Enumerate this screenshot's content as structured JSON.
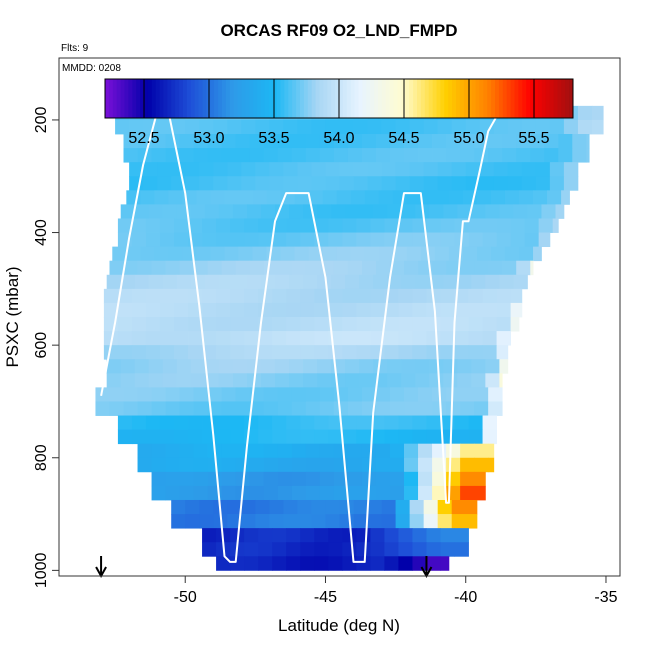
{
  "chart_data": {
    "type": "heatmap",
    "title": "ORCAS RF09 O2_LND_FMPD",
    "note_flts": "Flts: 9",
    "note_mmdd": "MMDD: 0208",
    "xlabel": "Latitude (deg N)",
    "ylabel": "PSXC (mbar)",
    "xlim": [
      -54.5,
      -34.5
    ],
    "ylim": [
      1010,
      90
    ],
    "y_reversed": true,
    "xticks": [
      -50,
      -45,
      -40,
      -35
    ],
    "yticks": [
      200,
      400,
      600,
      800,
      1000
    ],
    "colorbar": {
      "min": 52.2,
      "max": 55.8,
      "ticks": [
        52.5,
        53.0,
        53.5,
        54.0,
        54.5,
        55.0,
        55.5
      ],
      "tick_labels": [
        "52.5",
        "53.0",
        "53.5",
        "54.0",
        "54.5",
        "55.0",
        "55.5"
      ],
      "colors": [
        "#7b10d8",
        "#0000aa",
        "#1e4fd8",
        "#2e9ae8",
        "#1cb8f4",
        "#a8d6f4",
        "#e8f4ff",
        "#fffcd0",
        "#ffd000",
        "#ff8000",
        "#ff0000",
        "#a01010"
      ]
    },
    "grid_y_bin_mbar": 25,
    "cells": [
      {
        "p": 187.5,
        "x0": -52.5,
        "x1": -35.1,
        "v": 53.62,
        "v_r": 53.85,
        "xb": -37.0
      },
      {
        "p": 212.5,
        "x0": -52.5,
        "x1": -35.1,
        "v": 53.62,
        "v_r": 53.9,
        "xb": -37.0
      },
      {
        "p": 237.5,
        "x0": -52.2,
        "x1": -35.6,
        "v": 53.62,
        "v_r": 53.75,
        "xb": -36.5
      },
      {
        "p": 262.5,
        "x0": -52.2,
        "x1": -35.6,
        "v": 53.62,
        "v_r": 53.75,
        "xb": -36.5
      },
      {
        "p": 287.5,
        "x0": -52.0,
        "x1": -36.0,
        "v": 53.62,
        "v_r": 53.78,
        "xb": -37.0
      },
      {
        "p": 312.5,
        "x0": -52.0,
        "x1": -36.0,
        "v": 53.6,
        "v_r": 53.78,
        "xb": -37.0
      },
      {
        "p": 337.5,
        "x0": -52.1,
        "x1": -36.3,
        "v": 53.62,
        "v_r": 53.8,
        "xb": -37.0
      },
      {
        "p": 362.5,
        "x0": -52.3,
        "x1": -36.5,
        "v": 53.62,
        "v_r": 53.82,
        "xb": -37.5
      },
      {
        "p": 387.5,
        "x0": -52.4,
        "x1": -36.7,
        "v": 53.65,
        "v_r": 53.85,
        "xb": -37.5
      },
      {
        "p": 412.5,
        "x0": -52.4,
        "x1": -37.0,
        "v": 53.7,
        "v_r": 53.85,
        "xb": -37.5
      },
      {
        "p": 437.5,
        "x0": -52.6,
        "x1": -37.3,
        "v": 53.75,
        "v_r": 53.9,
        "xb": -37.5
      },
      {
        "p": 462.5,
        "x0": -52.7,
        "x1": -37.6,
        "v": 53.8,
        "v_r": 54.3,
        "xb": -38.0
      },
      {
        "p": 487.5,
        "x0": -52.8,
        "x1": -37.8,
        "v": 53.85,
        "v_r": 54.5,
        "xb": -38.0
      },
      {
        "p": 512.5,
        "x0": -52.9,
        "x1": -38.0,
        "v": 53.88,
        "v_r": 54.7,
        "xb": -38.2
      },
      {
        "p": 537.5,
        "x0": -52.9,
        "x1": -38.0,
        "v": 53.9,
        "v_r": 54.55,
        "xb": -38.3
      },
      {
        "p": 562.5,
        "x0": -52.9,
        "x1": -38.1,
        "v": 53.92,
        "v_r": 54.3,
        "xb": -38.5
      },
      {
        "p": 587.5,
        "x0": -52.9,
        "x1": -38.4,
        "v": 53.95,
        "v_r": 54.3,
        "xb": -38.8
      },
      {
        "p": 612.5,
        "x0": -52.9,
        "x1": -38.5,
        "v": 53.85,
        "v_r": 54.2,
        "xb": -38.9
      },
      {
        "p": 637.5,
        "x0": -52.8,
        "x1": -38.5,
        "v": 53.78,
        "v_r": 54.35,
        "xb": -38.9
      },
      {
        "p": 662.5,
        "x0": -52.8,
        "x1": -38.7,
        "v": 53.75,
        "v_r": 54.4,
        "xb": -39.2
      },
      {
        "p": 687.5,
        "x0": -53.2,
        "x1": -38.7,
        "v": 53.72,
        "v_r": 54.3,
        "xb": -39.2
      },
      {
        "p": 712.5,
        "x0": -53.2,
        "x1": -38.7,
        "v": 53.7,
        "v_r": 54.2,
        "xb": -39.2
      },
      {
        "p": 737.5,
        "x0": -52.4,
        "x1": -38.9,
        "v": 53.55,
        "v_r": 54.3,
        "xb": -39.5
      },
      {
        "p": 762.5,
        "x0": -52.4,
        "x1": -38.9,
        "v": 53.5,
        "v_r": 54.3,
        "xb": -39.5
      },
      {
        "p": 787.5,
        "x0": -51.7,
        "x1": -39.0,
        "v": 53.4,
        "v_r": 54.6,
        "xb": -42.5
      },
      {
        "p": 812.5,
        "x0": -51.7,
        "x1": -39.0,
        "v": 53.35,
        "v_r": 54.9,
        "xb": -42.5
      },
      {
        "p": 837.5,
        "x0": -51.2,
        "x1": -39.3,
        "v": 53.2,
        "v_r": 55.1,
        "xb": -42.3
      },
      {
        "p": 862.5,
        "x0": -51.2,
        "x1": -39.3,
        "v": 53.2,
        "v_r": 55.3,
        "xb": -42.3
      },
      {
        "p": 887.5,
        "x0": -50.5,
        "x1": -39.6,
        "v": 53.05,
        "v_r": 55.1,
        "xb": -42.6
      },
      {
        "p": 912.5,
        "x0": -50.5,
        "x1": -39.6,
        "v": 53.05,
        "v_r": 54.9,
        "xb": -42.6
      },
      {
        "p": 937.5,
        "x0": -49.4,
        "x1": -39.9,
        "v": 52.7,
        "v_r": 53.1,
        "xb": -43.5
      },
      {
        "p": 962.5,
        "x0": -49.4,
        "x1": -39.9,
        "v": 52.7,
        "v_r": 53.0,
        "xb": -43.5
      },
      {
        "p": 987.5,
        "x0": -48.9,
        "x1": -40.6,
        "v": 52.65,
        "v_r": 52.35,
        "xb": -42.8
      }
    ],
    "flight_track": [
      [
        -53.0,
        690
      ],
      [
        -52.5,
        560
      ],
      [
        -52.0,
        410
      ],
      [
        -51.5,
        280
      ],
      [
        -51.0,
        185
      ],
      [
        -50.6,
        185
      ],
      [
        -50.0,
        330
      ],
      [
        -49.5,
        530
      ],
      [
        -49.0,
        760
      ],
      [
        -48.6,
        975
      ],
      [
        -48.4,
        985
      ],
      [
        -48.2,
        985
      ],
      [
        -47.8,
        780
      ],
      [
        -47.3,
        560
      ],
      [
        -46.8,
        380
      ],
      [
        -46.4,
        330
      ],
      [
        -45.6,
        330
      ],
      [
        -45.0,
        480
      ],
      [
        -44.5,
        710
      ],
      [
        -44.0,
        985
      ],
      [
        -43.6,
        985
      ],
      [
        -43.3,
        720
      ],
      [
        -42.7,
        480
      ],
      [
        -42.2,
        330
      ],
      [
        -41.6,
        330
      ],
      [
        -41.1,
        540
      ],
      [
        -40.7,
        880
      ],
      [
        -40.6,
        880
      ],
      [
        -40.4,
        560
      ],
      [
        -40.1,
        380
      ],
      [
        -39.9,
        380
      ],
      [
        -39.5,
        290
      ],
      [
        -39.2,
        220
      ],
      [
        -38.8,
        185
      ],
      [
        -38.2,
        185
      ],
      [
        -37.3,
        185
      ],
      [
        -36.4,
        185
      ]
    ],
    "arrows_lat": [
      -53.0,
      -41.4
    ]
  }
}
